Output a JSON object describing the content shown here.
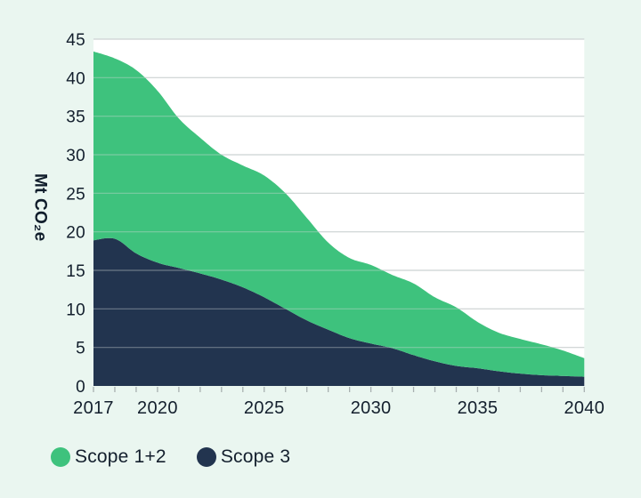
{
  "ylabel": "Mt CO₂e",
  "legend": [
    {
      "label": "Scope 1+2",
      "color": "#3EC27D"
    },
    {
      "label": "Scope 3",
      "color": "#22344F"
    }
  ],
  "colors": {
    "background": "#EAF6F0",
    "plot_background": "#FFFFFF",
    "gridline": "#CDD2D2",
    "gridline_overlay": "rgba(210,216,218,0.42)",
    "tick": "#A8B0B0",
    "text": "#131F2D"
  },
  "chart_data": {
    "type": "area",
    "stacked": true,
    "title": "",
    "xlabel": "",
    "ylabel": "Mt CO₂e",
    "x": [
      2017,
      2018,
      2019,
      2020,
      2021,
      2022,
      2023,
      2024,
      2025,
      2026,
      2027,
      2028,
      2029,
      2030,
      2031,
      2032,
      2033,
      2034,
      2035,
      2036,
      2037,
      2038,
      2039,
      2040
    ],
    "series": [
      {
        "name": "Scope 1+2",
        "color": "#3EC27D",
        "values": [
          24.5,
          23.4,
          23.8,
          22.3,
          19.4,
          17.6,
          16.2,
          15.8,
          15.8,
          15.0,
          13.3,
          11.3,
          10.4,
          10.2,
          9.5,
          9.3,
          8.3,
          7.6,
          6.0,
          5.0,
          4.5,
          4.0,
          3.3,
          2.4
        ]
      },
      {
        "name": "Scope 3",
        "color": "#22344F",
        "values": [
          18.9,
          19.1,
          17.2,
          16.0,
          15.3,
          14.6,
          13.8,
          12.8,
          11.5,
          10.0,
          8.5,
          7.3,
          6.2,
          5.5,
          4.9,
          4.0,
          3.2,
          2.6,
          2.3,
          1.9,
          1.6,
          1.4,
          1.3,
          1.2
        ]
      }
    ],
    "xlim": [
      2017,
      2040
    ],
    "ylim": [
      0,
      45
    ],
    "yticks": [
      0,
      5,
      10,
      15,
      20,
      25,
      30,
      35,
      40,
      45
    ],
    "xticks_minor_every": 1,
    "xticks_labeled": [
      2017,
      2020,
      2025,
      2030,
      2035,
      2040
    ],
    "grid": true,
    "legend_position": "bottom-left"
  }
}
